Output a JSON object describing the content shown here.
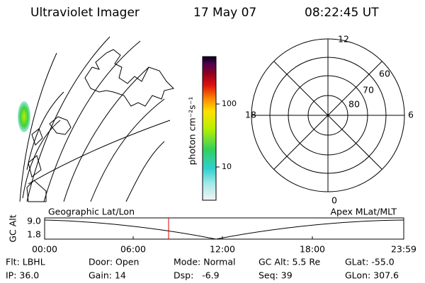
{
  "header": {
    "title": "Ultraviolet Imager",
    "date": "17 May 07",
    "time": "08:22:45 UT"
  },
  "colorbar": {
    "label": "photon cm⁻²s⁻¹",
    "ticks": [
      "100",
      "10"
    ]
  },
  "polar": {
    "mlt_labels": [
      "12",
      "18",
      "6",
      "0"
    ],
    "lat_labels": [
      "60",
      "70",
      "80"
    ]
  },
  "strip": {
    "left_title": "Geographic Lat/Lon",
    "right_title": "Apex MLat/MLT",
    "y_label": "GC Alt",
    "yticks": [
      "9.0",
      "1.8"
    ],
    "xticks": [
      "00:00",
      "06:00",
      "12:00",
      "18:00",
      "23:59"
    ]
  },
  "footer": {
    "rows": [
      [
        "Flt: LBHL",
        "Door: Open",
        "Mode: Normal",
        "GC Alt: 5.5 Re",
        "GLat: -55.0"
      ],
      [
        "IP: 36.0",
        "Gain: 14",
        "Dsp:   -6.9",
        "Seq: 39",
        "GLon: 307.6"
      ]
    ]
  }
}
